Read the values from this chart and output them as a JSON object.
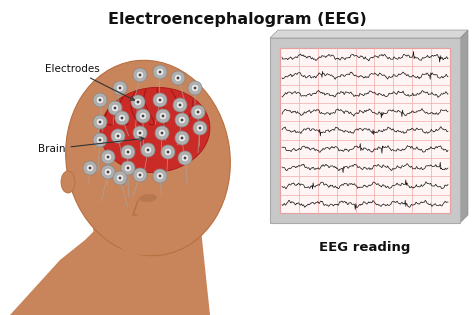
{
  "title": "Electroencephalogram (EEG)",
  "title_fontsize": 11.5,
  "title_fontweight": "bold",
  "label_electrodes": "Electrodes",
  "label_brain": "Brain",
  "label_eeg_reading": "EEG reading",
  "background_color": "#ffffff",
  "eeg_panel_bg": "#fff5f5",
  "eeg_grid_color": "#f0aaaa",
  "eeg_line_color": "#111111",
  "n_eeg_channels": 9,
  "n_eeg_points": 300,
  "annotation_color": "#111111",
  "annotation_fontsize": 7.5,
  "eeg_label_fontsize": 9.5,
  "eeg_label_fontweight": "bold",
  "skin_color": "#c8845a",
  "skin_dark": "#b87040",
  "brain_color": "#cc2222",
  "brain_dark": "#aa1111",
  "electrode_outer": "#b0b0b0",
  "electrode_inner": "#e8e8e8",
  "electrode_wire": "#aaaaaa",
  "monitor_frame": "#c8c8c8",
  "monitor_dark": "#a0a0a0",
  "monitor_light": "#d8d8d8"
}
